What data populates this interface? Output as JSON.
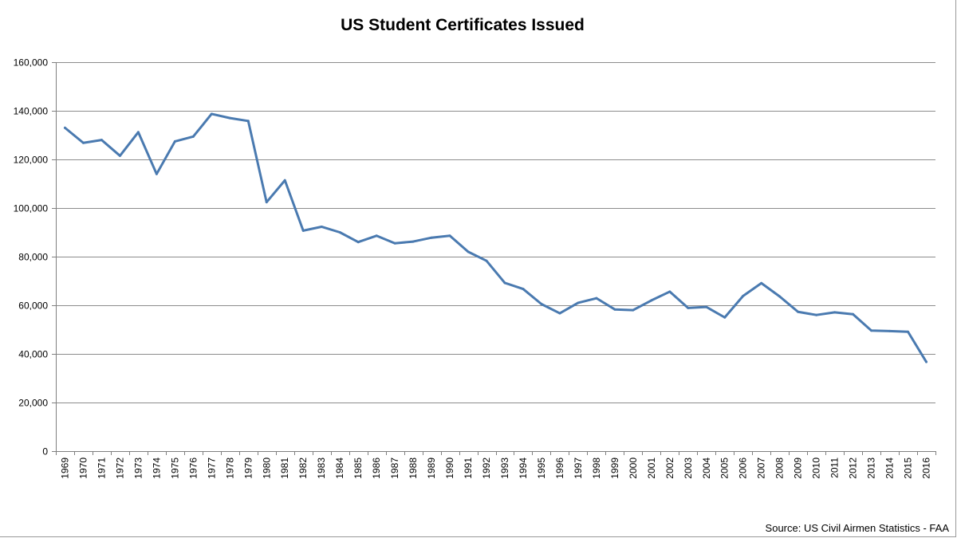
{
  "chart_data": {
    "type": "line",
    "title": "US Student Certificates Issued",
    "xlabel": "",
    "ylabel": "",
    "ylim": [
      0,
      160000
    ],
    "y_ticks": [
      "0",
      "20,000",
      "40,000",
      "60,000",
      "80,000",
      "100,000",
      "120,000",
      "140,000",
      "160,000"
    ],
    "grid": true,
    "legend": "none",
    "line_color": "#4a7ab0",
    "x": [
      "1969",
      "1970",
      "1971",
      "1972",
      "1973",
      "1974",
      "1975",
      "1976",
      "1977",
      "1978",
      "1979",
      "1980",
      "1981",
      "1982",
      "1983",
      "1984",
      "1985",
      "1986",
      "1987",
      "1988",
      "1989",
      "1990",
      "1991",
      "1992",
      "1993",
      "1994",
      "1995",
      "1996",
      "1997",
      "1998",
      "1999",
      "2000",
      "2001",
      "2002",
      "2003",
      "2004",
      "2005",
      "2006",
      "2007",
      "2008",
      "2009",
      "2010",
      "2011",
      "2012",
      "2013",
      "2014",
      "2015",
      "2016"
    ],
    "series": [
      {
        "values": [
          133000,
          126800,
          128000,
          121500,
          131200,
          114000,
          127400,
          129400,
          138700,
          137000,
          135800,
          102400,
          111400,
          90700,
          92300,
          90000,
          86000,
          88600,
          85500,
          86200,
          87800,
          88600,
          82000,
          78300,
          69200,
          66700,
          60500,
          56700,
          61000,
          62900,
          58300,
          58000,
          62000,
          65600,
          58900,
          59300,
          55000,
          63800,
          69100,
          63600,
          57300,
          56000,
          57100,
          56300,
          49600,
          49400,
          49100,
          36700
        ]
      }
    ],
    "source": "Source: US Civil Airmen Statistics - FAA"
  }
}
